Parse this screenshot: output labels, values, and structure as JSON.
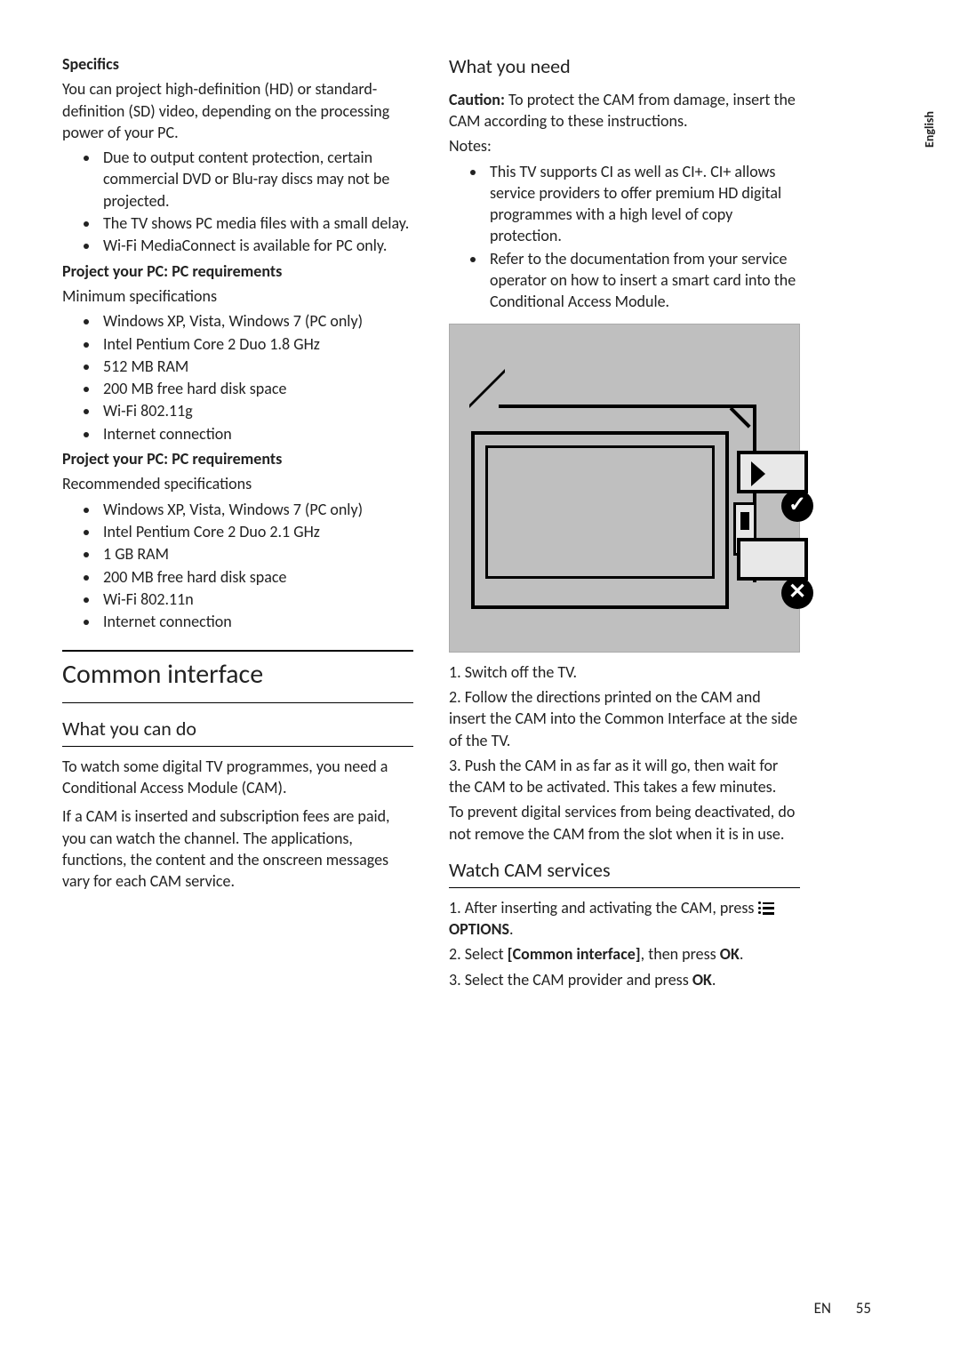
{
  "sideTab": "English",
  "footer": {
    "lang": "EN",
    "page": "55"
  },
  "left": {
    "specifics": {
      "heading": "Specifics",
      "intro": "You can project high-definition (HD) or standard-definition (SD) video, depending on the processing power of your PC.",
      "bullets": [
        "Due to output content protection, certain commercial DVD or Blu-ray discs may not be projected.",
        "The TV shows PC media files with a small delay.",
        "Wi-Fi MediaConnect is available for PC only."
      ]
    },
    "minReq": {
      "heading": "Project your PC: PC requirements",
      "sub": "Minimum specifications",
      "bullets": [
        "Windows XP, Vista, Windows 7 (PC only)",
        "Intel Pentium Core 2 Duo 1.8 GHz",
        "512 MB RAM",
        "200 MB free hard disk space",
        "Wi-Fi 802.11g",
        "Internet connection"
      ]
    },
    "recReq": {
      "heading": "Project your PC: PC requirements",
      "sub": "Recommended specifications",
      "bullets": [
        "Windows XP, Vista, Windows 7 (PC only)",
        "Intel Pentium Core 2 Duo 2.1 GHz",
        "1 GB RAM",
        "200 MB free hard disk space",
        "Wi-Fi 802.11n",
        "Internet connection"
      ]
    },
    "commonInterface": {
      "title": "Common interface",
      "whatYouCanDo": {
        "heading": "What you can do",
        "p1": "To watch some digital TV programmes, you need a Conditional Access Module (CAM).",
        "p2": "If a CAM is inserted and subscription fees are paid, you can watch the channel. The applications, functions, the content and the onscreen messages vary for each CAM service."
      }
    }
  },
  "right": {
    "whatYouNeed": {
      "heading": "What you need",
      "cautionLabel": "Caution:",
      "cautionText": " To protect the CAM from damage, insert the CAM according to these instructions.",
      "notesLabel": "Notes:",
      "notes": [
        "This TV supports CI as well as CI+. CI+ allows service providers to offer premium HD digital programmes with a high level of copy protection.",
        "Refer to the documentation from your service operator on how to insert a smart card into the Conditional Access Module."
      ],
      "steps": [
        "1. Switch off the TV.",
        "2. Follow the directions printed on the CAM and insert the CAM into the Common Interface at the side of the TV.",
        "3. Push the CAM in as far as it will go, then wait for the CAM to be activated. This takes a few minutes."
      ],
      "warn": "To prevent digital services from being deactivated, do not remove the CAM from the slot when it is in use."
    },
    "watchCam": {
      "heading": "Watch CAM services",
      "s1a": "1. After inserting and activating the CAM, press ",
      "s1b": " OPTIONS",
      "s1c": ".",
      "s2a": "2. Select ",
      "s2b": "[Common interface]",
      "s2c": ", then press ",
      "s2d": "OK",
      "s2e": ".",
      "s3a": "3. Select the CAM provider and press ",
      "s3b": "OK",
      "s3c": "."
    }
  }
}
